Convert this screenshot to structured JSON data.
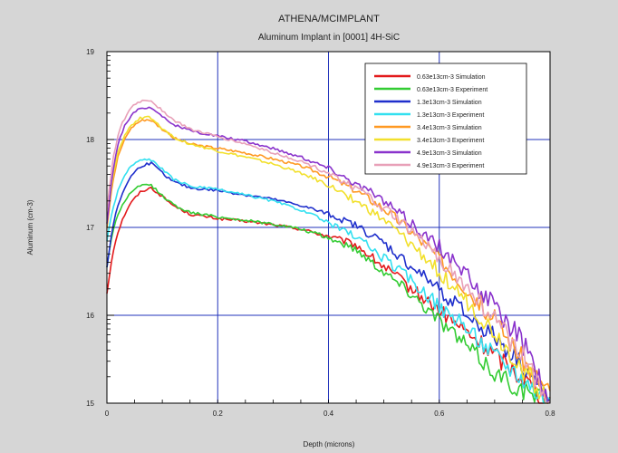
{
  "chart_data": {
    "type": "line",
    "title": "ATHENA/MCIMPLANT",
    "subtitle": "Aluminum Implant in [0001] 4H-SiC",
    "xlabel": "Depth (microns)",
    "ylabel": "Aluminum (cm-3)",
    "xlim": [
      0,
      0.8
    ],
    "ylim": [
      15,
      19
    ],
    "log_y": true,
    "grid": true,
    "legend_position": "top-right",
    "xticks": [
      "0",
      "0.2",
      "0.4",
      "0.6",
      "0.8"
    ],
    "yticks": [
      "15",
      "16",
      "17",
      "18",
      "19"
    ],
    "series": [
      {
        "name": "0.63e13cm-3 Simulation",
        "color": "#e31a1c",
        "x": [
          0,
          0.01,
          0.02,
          0.03,
          0.04,
          0.05,
          0.06,
          0.07,
          0.08,
          0.1,
          0.12,
          0.15,
          0.2,
          0.25,
          0.3,
          0.35,
          0.4,
          0.45,
          0.5,
          0.55,
          0.6,
          0.65,
          0.7,
          0.75,
          0.8
        ],
        "y": [
          16.25,
          16.7,
          16.95,
          17.12,
          17.25,
          17.33,
          17.4,
          17.43,
          17.45,
          17.35,
          17.25,
          17.15,
          17.1,
          17.07,
          17.03,
          16.98,
          16.9,
          16.8,
          16.55,
          16.3,
          16.05,
          15.8,
          15.55,
          15.3,
          15.0
        ]
      },
      {
        "name": "0.63e13cm-3 Experiment",
        "color": "#33cc33",
        "x": [
          0,
          0.01,
          0.02,
          0.03,
          0.04,
          0.05,
          0.06,
          0.07,
          0.08,
          0.1,
          0.12,
          0.15,
          0.2,
          0.25,
          0.3,
          0.35,
          0.4,
          0.45,
          0.5,
          0.55,
          0.6,
          0.65,
          0.7,
          0.75,
          0.8
        ],
        "y": [
          16.55,
          16.95,
          17.15,
          17.28,
          17.37,
          17.43,
          17.47,
          17.49,
          17.48,
          17.36,
          17.26,
          17.17,
          17.12,
          17.08,
          17.04,
          16.98,
          16.88,
          16.75,
          16.5,
          16.25,
          15.95,
          15.65,
          15.35,
          15.15,
          15.0
        ]
      },
      {
        "name": "1.3e13cm-3 Simulation",
        "color": "#1f2fcc",
        "x": [
          0,
          0.01,
          0.02,
          0.03,
          0.04,
          0.05,
          0.06,
          0.07,
          0.08,
          0.1,
          0.12,
          0.15,
          0.2,
          0.25,
          0.3,
          0.35,
          0.4,
          0.45,
          0.5,
          0.55,
          0.6,
          0.65,
          0.7,
          0.75,
          0.8
        ],
        "y": [
          16.55,
          17.0,
          17.25,
          17.42,
          17.55,
          17.63,
          17.69,
          17.72,
          17.73,
          17.62,
          17.52,
          17.45,
          17.42,
          17.37,
          17.32,
          17.25,
          17.15,
          17.02,
          16.82,
          16.55,
          16.3,
          16.0,
          15.75,
          15.45,
          15.0
        ]
      },
      {
        "name": "1.3e13cm-3 Experiment",
        "color": "#33e0f0",
        "x": [
          0,
          0.01,
          0.02,
          0.03,
          0.04,
          0.05,
          0.06,
          0.07,
          0.08,
          0.1,
          0.12,
          0.15,
          0.2,
          0.25,
          0.3,
          0.35,
          0.4,
          0.45,
          0.5,
          0.55,
          0.6,
          0.65,
          0.7,
          0.75,
          0.8
        ],
        "y": [
          16.85,
          17.2,
          17.42,
          17.57,
          17.67,
          17.73,
          17.76,
          17.78,
          17.77,
          17.66,
          17.55,
          17.47,
          17.43,
          17.37,
          17.3,
          17.2,
          17.05,
          16.9,
          16.65,
          16.4,
          16.1,
          15.85,
          15.55,
          15.3,
          15.0
        ]
      },
      {
        "name": "3.4e13cm-3 Simulation",
        "color": "#ff9922",
        "x": [
          0,
          0.01,
          0.02,
          0.03,
          0.04,
          0.05,
          0.06,
          0.07,
          0.08,
          0.1,
          0.12,
          0.15,
          0.2,
          0.25,
          0.3,
          0.35,
          0.4,
          0.45,
          0.5,
          0.55,
          0.6,
          0.65,
          0.7,
          0.75,
          0.8
        ],
        "y": [
          17.0,
          17.5,
          17.8,
          17.98,
          18.1,
          18.17,
          18.21,
          18.23,
          18.22,
          18.12,
          18.02,
          17.95,
          17.9,
          17.85,
          17.78,
          17.7,
          17.58,
          17.42,
          17.22,
          16.95,
          16.65,
          16.3,
          15.95,
          15.5,
          15.1
        ]
      },
      {
        "name": "3.4e13cm-3 Experiment",
        "color": "#f2e02c",
        "x": [
          0,
          0.01,
          0.02,
          0.03,
          0.04,
          0.05,
          0.06,
          0.07,
          0.08,
          0.1,
          0.12,
          0.15,
          0.2,
          0.25,
          0.3,
          0.35,
          0.4,
          0.45,
          0.5,
          0.55,
          0.6,
          0.65,
          0.7,
          0.75,
          0.8
        ],
        "y": [
          17.05,
          17.55,
          17.85,
          18.02,
          18.13,
          18.2,
          18.24,
          18.26,
          18.24,
          18.13,
          18.03,
          17.95,
          17.87,
          17.8,
          17.72,
          17.62,
          17.48,
          17.3,
          17.08,
          16.8,
          16.5,
          16.15,
          15.8,
          15.4,
          15.0
        ]
      },
      {
        "name": "4.9e13cm-3 Simulation",
        "color": "#8a33cc",
        "x": [
          0,
          0.01,
          0.02,
          0.03,
          0.04,
          0.05,
          0.06,
          0.07,
          0.08,
          0.1,
          0.12,
          0.15,
          0.2,
          0.25,
          0.3,
          0.35,
          0.4,
          0.45,
          0.5,
          0.55,
          0.6,
          0.65,
          0.7,
          0.75,
          0.8
        ],
        "y": [
          17.05,
          17.6,
          17.95,
          18.13,
          18.24,
          18.31,
          18.35,
          18.37,
          18.36,
          18.27,
          18.17,
          18.1,
          18.04,
          17.98,
          17.9,
          17.8,
          17.68,
          17.5,
          17.3,
          17.05,
          16.78,
          16.45,
          16.1,
          15.7,
          15.0
        ]
      },
      {
        "name": "4.9e13cm-3 Experiment",
        "color": "#e8a0b8",
        "x": [
          0,
          0.01,
          0.02,
          0.03,
          0.04,
          0.05,
          0.06,
          0.07,
          0.08,
          0.1,
          0.12,
          0.15,
          0.2,
          0.25,
          0.3,
          0.35,
          0.4,
          0.45,
          0.5,
          0.55,
          0.6,
          0.65,
          0.7,
          0.75,
          0.8
        ],
        "y": [
          17.2,
          17.75,
          18.05,
          18.22,
          18.33,
          18.4,
          18.43,
          18.45,
          18.44,
          18.33,
          18.22,
          18.12,
          18.03,
          17.95,
          17.85,
          17.75,
          17.62,
          17.45,
          17.22,
          16.95,
          16.65,
          16.3,
          15.95,
          15.55,
          15.0
        ]
      }
    ]
  },
  "colors": {
    "background": "#d6d6d6",
    "plot_area": "#ffffff",
    "grid": "#2233bb",
    "axis": "#000000"
  }
}
